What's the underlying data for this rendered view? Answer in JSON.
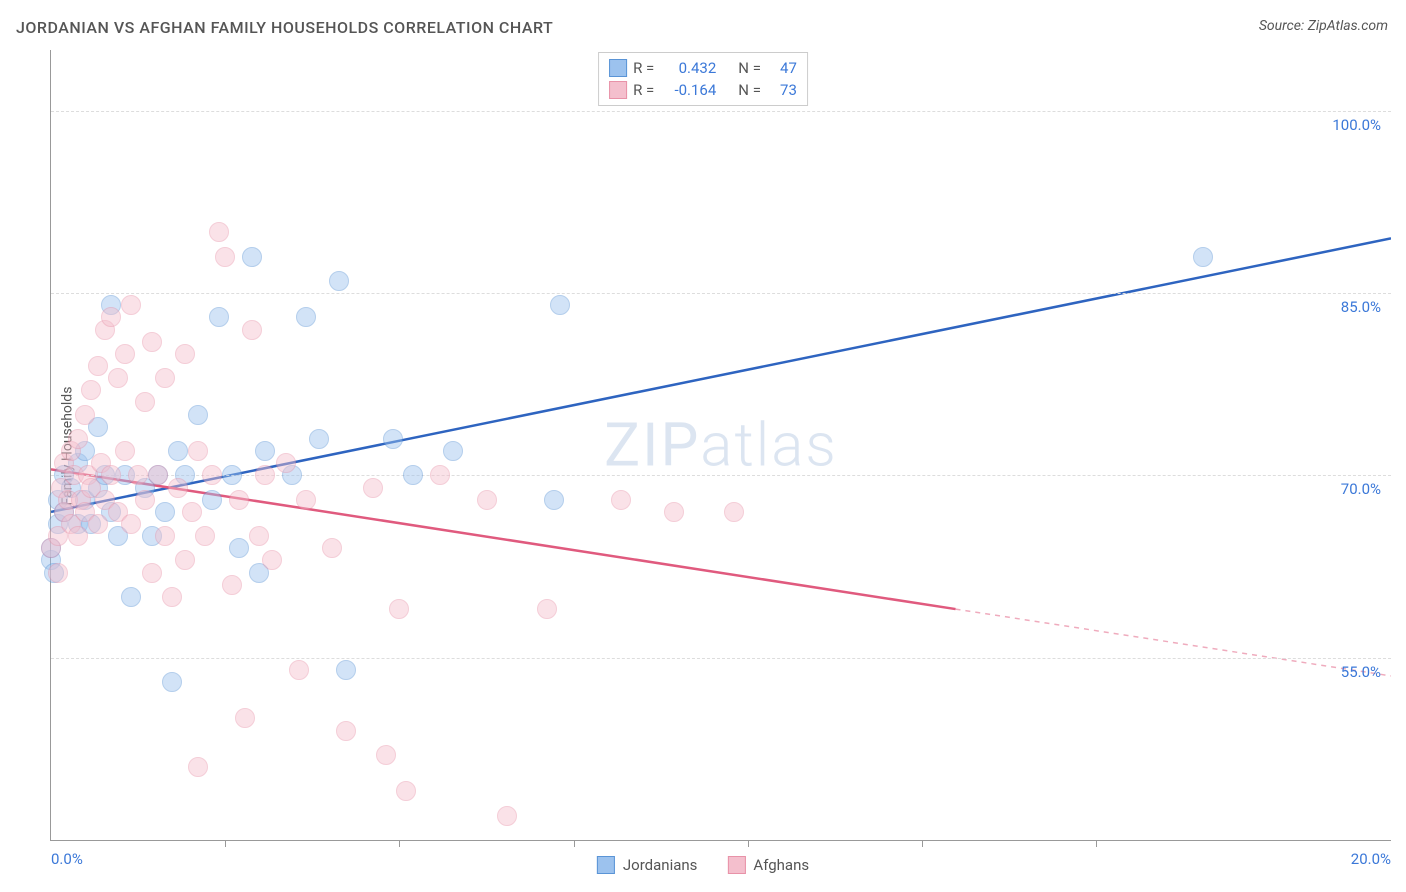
{
  "title": "JORDANIAN VS AFGHAN FAMILY HOUSEHOLDS CORRELATION CHART",
  "source_label": "Source: ",
  "source_value": "ZipAtlas.com",
  "ylabel": "Family Households",
  "watermark_bold": "ZIP",
  "watermark_thin": "atlas",
  "chart": {
    "type": "scatter-with-regression",
    "xlim": [
      0,
      20
    ],
    "ylim": [
      40,
      105
    ],
    "x_left_label": "0.0%",
    "x_right_label": "20.0%",
    "x_label_color": "#3b78d8",
    "xtick_positions": [
      2.6,
      5.2,
      7.8,
      10.4,
      13.0,
      15.6
    ],
    "y_gridlines": [
      55,
      70,
      85,
      100
    ],
    "y_labels": [
      "55.0%",
      "70.0%",
      "85.0%",
      "100.0%"
    ],
    "y_label_color": "#3b78d8",
    "grid_color": "#dddddd",
    "axis_color": "#999999",
    "background_color": "#ffffff",
    "marker_radius": 9,
    "marker_opacity": 0.45,
    "series": [
      {
        "name": "Jordanians",
        "fill_color": "#9cc2ee",
        "stroke_color": "#5a94d6",
        "line_color": "#2e64c0",
        "r_value": "0.432",
        "n_value": "47",
        "regression": {
          "x1": 0,
          "y1": 67,
          "x2": 20,
          "y2": 89.5
        },
        "points": [
          [
            0.0,
            63
          ],
          [
            0.0,
            64
          ],
          [
            0.05,
            62
          ],
          [
            0.1,
            66
          ],
          [
            0.1,
            68
          ],
          [
            0.2,
            67
          ],
          [
            0.2,
            70
          ],
          [
            0.3,
            69
          ],
          [
            0.4,
            66
          ],
          [
            0.4,
            71
          ],
          [
            0.5,
            68
          ],
          [
            0.5,
            72
          ],
          [
            0.6,
            66
          ],
          [
            0.7,
            69
          ],
          [
            0.7,
            74
          ],
          [
            0.8,
            70
          ],
          [
            0.9,
            67
          ],
          [
            0.9,
            84
          ],
          [
            1.0,
            65
          ],
          [
            1.1,
            70
          ],
          [
            1.2,
            60
          ],
          [
            1.4,
            69
          ],
          [
            1.5,
            65
          ],
          [
            1.6,
            70
          ],
          [
            1.7,
            67
          ],
          [
            1.8,
            53
          ],
          [
            1.9,
            72
          ],
          [
            2.0,
            70
          ],
          [
            2.2,
            75
          ],
          [
            2.4,
            68
          ],
          [
            2.5,
            83
          ],
          [
            2.7,
            70
          ],
          [
            2.8,
            64
          ],
          [
            3.0,
            88
          ],
          [
            3.1,
            62
          ],
          [
            3.2,
            72
          ],
          [
            3.6,
            70
          ],
          [
            3.8,
            83
          ],
          [
            4.0,
            73
          ],
          [
            4.3,
            86
          ],
          [
            4.4,
            54
          ],
          [
            5.1,
            73
          ],
          [
            5.4,
            70
          ],
          [
            6.0,
            72
          ],
          [
            7.5,
            68
          ],
          [
            7.6,
            84
          ],
          [
            17.2,
            88
          ]
        ]
      },
      {
        "name": "Afghans",
        "fill_color": "#f4bfcd",
        "stroke_color": "#e892a8",
        "line_color": "#e05a7e",
        "r_value": "-0.164",
        "n_value": "73",
        "regression": {
          "x1": 0,
          "y1": 70.5,
          "x2": 13.5,
          "y2": 59
        },
        "regression_dash": {
          "x1": 13.5,
          "y1": 59,
          "x2": 20,
          "y2": 53.5
        },
        "points": [
          [
            0.0,
            64
          ],
          [
            0.1,
            62
          ],
          [
            0.1,
            65
          ],
          [
            0.15,
            69
          ],
          [
            0.2,
            67
          ],
          [
            0.2,
            71
          ],
          [
            0.25,
            68
          ],
          [
            0.3,
            66
          ],
          [
            0.3,
            72
          ],
          [
            0.35,
            70
          ],
          [
            0.4,
            65
          ],
          [
            0.4,
            73
          ],
          [
            0.45,
            68
          ],
          [
            0.5,
            67
          ],
          [
            0.5,
            75
          ],
          [
            0.55,
            70
          ],
          [
            0.6,
            69
          ],
          [
            0.6,
            77
          ],
          [
            0.7,
            66
          ],
          [
            0.7,
            79
          ],
          [
            0.75,
            71
          ],
          [
            0.8,
            68
          ],
          [
            0.8,
            82
          ],
          [
            0.9,
            70
          ],
          [
            0.9,
            83
          ],
          [
            1.0,
            67
          ],
          [
            1.0,
            78
          ],
          [
            1.1,
            72
          ],
          [
            1.1,
            80
          ],
          [
            1.2,
            66
          ],
          [
            1.2,
            84
          ],
          [
            1.3,
            70
          ],
          [
            1.4,
            68
          ],
          [
            1.4,
            76
          ],
          [
            1.5,
            62
          ],
          [
            1.5,
            81
          ],
          [
            1.6,
            70
          ],
          [
            1.7,
            65
          ],
          [
            1.7,
            78
          ],
          [
            1.8,
            60
          ],
          [
            1.9,
            69
          ],
          [
            2.0,
            63
          ],
          [
            2.0,
            80
          ],
          [
            2.1,
            67
          ],
          [
            2.2,
            72
          ],
          [
            2.3,
            65
          ],
          [
            2.4,
            70
          ],
          [
            2.5,
            90
          ],
          [
            2.6,
            88
          ],
          [
            2.7,
            61
          ],
          [
            2.8,
            68
          ],
          [
            2.9,
            50
          ],
          [
            3.0,
            82
          ],
          [
            3.1,
            65
          ],
          [
            3.2,
            70
          ],
          [
            3.3,
            63
          ],
          [
            3.5,
            71
          ],
          [
            3.7,
            54
          ],
          [
            3.8,
            68
          ],
          [
            4.2,
            64
          ],
          [
            4.4,
            49
          ],
          [
            4.8,
            69
          ],
          [
            5.0,
            47
          ],
          [
            5.2,
            59
          ],
          [
            5.3,
            44
          ],
          [
            5.8,
            70
          ],
          [
            6.5,
            68
          ],
          [
            6.8,
            42
          ],
          [
            7.4,
            59
          ],
          [
            8.5,
            68
          ],
          [
            9.3,
            67
          ],
          [
            10.2,
            67
          ],
          [
            2.2,
            46
          ]
        ]
      }
    ]
  },
  "legend_top": {
    "r_label": "R =",
    "n_label": "N ="
  },
  "text_color": "#555555",
  "value_color": "#3b78d8"
}
